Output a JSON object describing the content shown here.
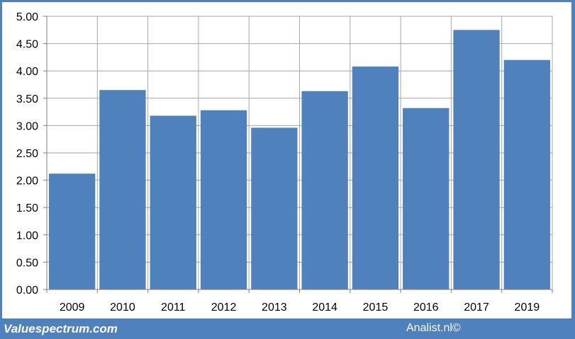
{
  "chart_data": {
    "type": "bar",
    "categories": [
      "2009",
      "2010",
      "2011",
      "2012",
      "2013",
      "2014",
      "2015",
      "2016",
      "2017",
      "2019"
    ],
    "values": [
      2.12,
      3.65,
      3.18,
      3.28,
      2.96,
      3.63,
      4.08,
      3.32,
      4.75,
      4.2
    ],
    "ylim": [
      0,
      5
    ],
    "y_ticks": [
      "0.00",
      "0.50",
      "1.00",
      "1.50",
      "2.00",
      "2.50",
      "3.00",
      "3.50",
      "4.00",
      "4.50",
      "5.00"
    ],
    "grid": true,
    "bar_color": "#4f81bd",
    "grid_color": "#a6a6a6"
  },
  "footer": {
    "brand": "Valuespectrum.com",
    "copyright": "Analist.nl©"
  }
}
